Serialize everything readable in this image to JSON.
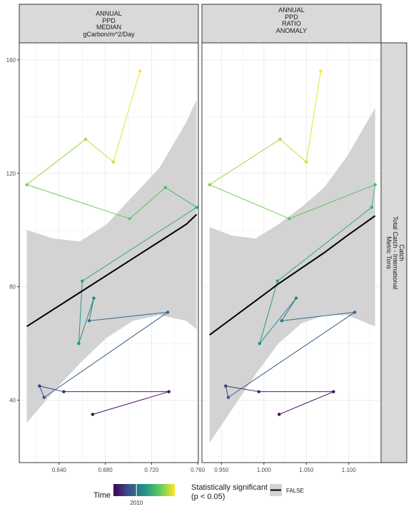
{
  "chart_data": {
    "type": "scatter",
    "facet_strip_right": [
      "Catch",
      "Total Catch - International",
      "Metric Tons"
    ],
    "y_ticks": [
      40,
      80,
      120,
      160
    ],
    "ylim": [
      18,
      166
    ],
    "grid": true,
    "point_color_by": "year",
    "panels": [
      {
        "strip": [
          "ANNUAL",
          "PPD",
          "MEDIAN",
          "gCarbon/m^2/Day"
        ],
        "xlim": [
          0.6055,
          0.7605
        ],
        "x_ticks": [
          0.64,
          0.68,
          0.72,
          0.76
        ],
        "x_tick_labels": [
          "0.640",
          "0.680",
          "0.720",
          "0.760"
        ],
        "series": {
          "x": [
            0.669,
            0.735,
            0.644,
            0.623,
            0.627,
            0.734,
            0.666,
            0.67,
            0.657,
            0.66,
            0.759,
            0.732,
            0.701,
            0.612,
            0.663,
            0.687,
            0.71
          ],
          "y": [
            35,
            43,
            43,
            45,
            41,
            71,
            68,
            76,
            60,
            82,
            108,
            115,
            104,
            116,
            132,
            124,
            156
          ],
          "year": [
            2004,
            2005,
            2006,
            2007,
            2008,
            2009,
            2010,
            2011,
            2012,
            2013,
            2014,
            2015,
            2016,
            2017,
            2018,
            2019,
            2020
          ]
        },
        "trend": {
          "x": [
            0.612,
            0.635,
            0.658,
            0.681,
            0.704,
            0.727,
            0.75,
            0.759
          ],
          "fit": [
            66,
            72,
            78,
            84,
            90,
            96,
            102,
            105.5
          ],
          "ci_lower": [
            32,
            43,
            53,
            62,
            68,
            70,
            68,
            65
          ],
          "ci_upper": [
            100,
            97,
            96,
            102,
            112,
            122,
            138,
            146
          ]
        }
      },
      {
        "strip": [
          "ANNUAL",
          "PPD",
          "RATIO",
          "ANOMALY"
        ],
        "xlim": [
          0.927,
          1.138
        ],
        "x_ticks": [
          0.95,
          1.0,
          1.05,
          1.1
        ],
        "x_tick_labels": [
          "0.950",
          "1.000",
          "1.050",
          "1.100"
        ],
        "series": {
          "x": [
            1.018,
            1.082,
            0.994,
            0.955,
            0.958,
            1.107,
            1.021,
            1.038,
            0.995,
            1.016,
            1.127,
            1.131,
            1.03,
            0.936,
            1.019,
            1.05,
            1.067
          ],
          "y": [
            35,
            43,
            43,
            45,
            41,
            71,
            68,
            76,
            60,
            82,
            108,
            116,
            104,
            116,
            132,
            124,
            156
          ],
          "year": [
            2004,
            2005,
            2006,
            2007,
            2008,
            2009,
            2010,
            2011,
            2012,
            2013,
            2014,
            2015,
            2016,
            2017,
            2018,
            2019,
            2020
          ]
        },
        "trend": {
          "x": [
            0.936,
            0.963,
            0.99,
            1.017,
            1.044,
            1.071,
            1.098,
            1.131
          ],
          "fit": [
            63,
            69,
            75,
            81,
            86.5,
            92,
            98,
            105
          ],
          "ci_lower": [
            25,
            37,
            49,
            60,
            67,
            70,
            70,
            66
          ],
          "ci_upper": [
            101,
            98,
            97,
            102,
            108,
            115,
            126,
            143
          ]
        }
      }
    ],
    "legend": {
      "color_title": "Time",
      "color_tick": "2010",
      "color_range": [
        2004,
        2020
      ],
      "color_tick_value": 2010,
      "fill_title_line1": "Statistically significant",
      "fill_title_line2": "(p < 0.05)",
      "fill_key": "FALSE"
    },
    "colors": {
      "trend": "#000000",
      "ribbon": "#d3d3d3",
      "strip_fill": "#d9d9d9",
      "panel_border": "#333333",
      "grid": "#ebebeb"
    }
  }
}
